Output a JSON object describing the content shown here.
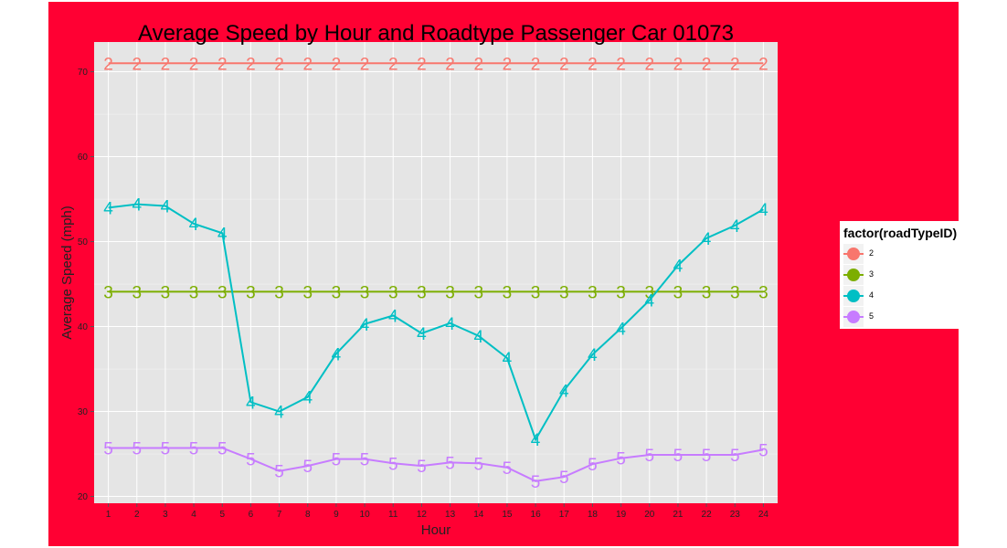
{
  "chart_data": {
    "type": "line",
    "title": "Average Speed by Hour and Roadtype Passenger Car 01073",
    "xlabel": "Hour",
    "ylabel": "Average Speed (mph)",
    "x": [
      1,
      2,
      3,
      4,
      5,
      6,
      7,
      8,
      9,
      10,
      11,
      12,
      13,
      14,
      15,
      16,
      17,
      18,
      19,
      20,
      21,
      22,
      23,
      24
    ],
    "xlim": [
      0.5,
      24.5
    ],
    "ylim": [
      19.2,
      73.5
    ],
    "yticks": [
      20,
      30,
      40,
      50,
      60,
      70
    ],
    "grid": true,
    "legend_position": "right",
    "legend_title": "factor(roadTypeID)",
    "series": [
      {
        "name": "2",
        "marker": "2",
        "color": "#f8766d",
        "values": [
          71,
          71,
          71,
          71,
          71,
          71,
          71,
          71,
          71,
          71,
          71,
          71,
          71,
          71,
          71,
          71,
          71,
          71,
          71,
          71,
          71,
          71,
          71,
          71
        ]
      },
      {
        "name": "3",
        "marker": "3",
        "color": "#7cae00",
        "values": [
          44.1,
          44.1,
          44.1,
          44.1,
          44.1,
          44.1,
          44.1,
          44.1,
          44.1,
          44.1,
          44.1,
          44.1,
          44.1,
          44.1,
          44.1,
          44.1,
          44.1,
          44.1,
          44.1,
          44.1,
          44.1,
          44.1,
          44.1,
          44.1
        ]
      },
      {
        "name": "4",
        "marker": "4",
        "color": "#00bfc4",
        "values": [
          54.0,
          54.4,
          54.2,
          52.1,
          51.0,
          31.1,
          30.0,
          31.7,
          36.8,
          40.3,
          41.3,
          39.2,
          40.4,
          38.9,
          36.3,
          26.7,
          32.5,
          36.7,
          39.8,
          43.1,
          47.2,
          50.4,
          51.9,
          53.8
        ]
      },
      {
        "name": "5",
        "marker": "5",
        "color": "#c77cff",
        "values": [
          25.7,
          25.7,
          25.7,
          25.7,
          25.7,
          24.4,
          23.0,
          23.6,
          24.4,
          24.4,
          23.9,
          23.6,
          24.0,
          23.9,
          23.4,
          21.8,
          22.3,
          23.8,
          24.5,
          24.9,
          24.9,
          24.9,
          24.9,
          25.5
        ]
      }
    ]
  }
}
